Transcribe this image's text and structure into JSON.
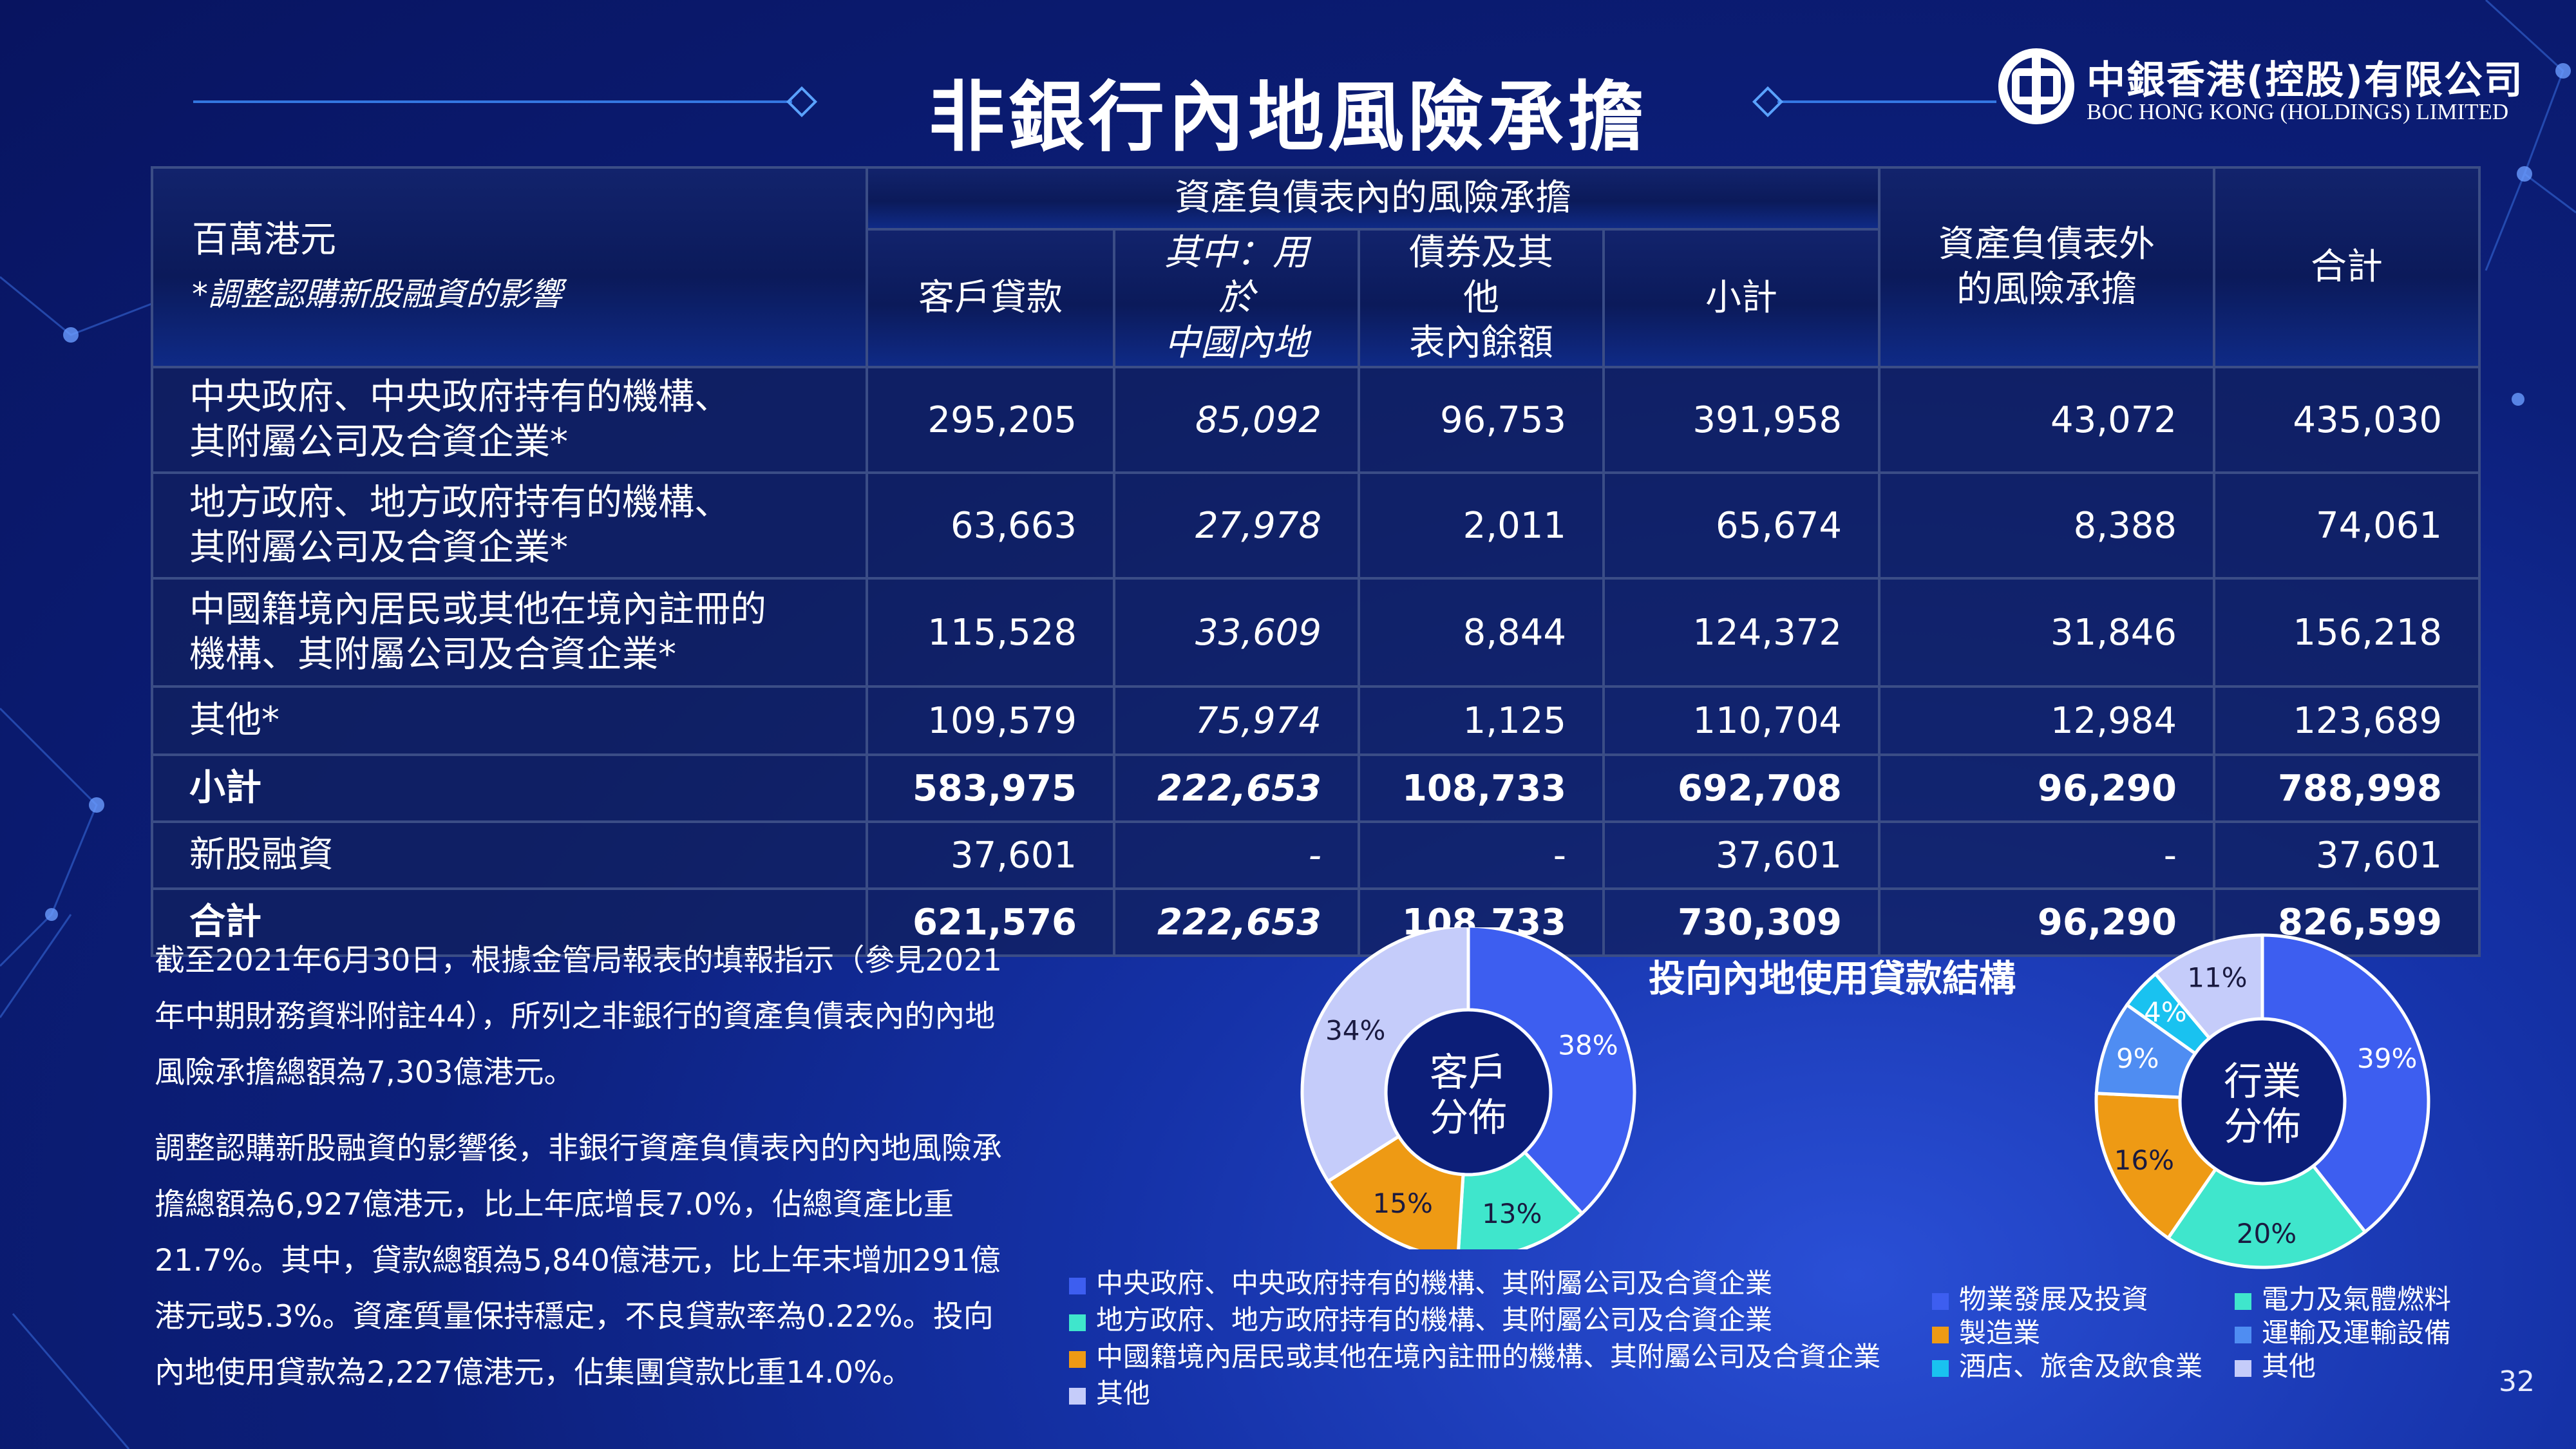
{
  "title": "非銀行內地風險承擔",
  "logo": {
    "name_cn": "中銀香港(控股)有限公司",
    "name_en": "BOC HONG KONG (HOLDINGS) LIMITED"
  },
  "table": {
    "unit": "百萬港元",
    "unit_note": "*調整認購新股融資的影響",
    "group_header": "資產負債表內的風險承擔",
    "columns": [
      "客戶貸款",
      "其中：用於\n中國內地",
      "債券及其他\n表內餘額",
      "小計",
      "資產負債表外\n的風險承擔",
      "合計"
    ],
    "rows": [
      {
        "label": "中央政府、中央政府持有的機構、\n其附屬公司及合資企業*",
        "values": [
          "295,205",
          "85,092",
          "96,753",
          "391,958",
          "43,072",
          "435,030"
        ]
      },
      {
        "label": "地方政府、地方政府持有的機構、\n其附屬公司及合資企業*",
        "values": [
          "63,663",
          "27,978",
          "2,011",
          "65,674",
          "8,388",
          "74,061"
        ]
      },
      {
        "label": "中國籍境內居民或其他在境內註冊的\n機構、其附屬公司及合資企業*",
        "values": [
          "115,528",
          "33,609",
          "8,844",
          "124,372",
          "31,846",
          "156,218"
        ]
      },
      {
        "label": "其他*",
        "values": [
          "109,579",
          "75,974",
          "1,125",
          "110,704",
          "12,984",
          "123,689"
        ]
      },
      {
        "label": "小計",
        "values": [
          "583,975",
          "222,653",
          "108,733",
          "692,708",
          "96,290",
          "788,998"
        ],
        "bold": true
      },
      {
        "label": "新股融資",
        "values": [
          "37,601",
          "-",
          "-",
          "37,601",
          "-",
          "37,601"
        ]
      },
      {
        "label": "合計",
        "values": [
          "621,576",
          "222,653",
          "108,733",
          "730,309",
          "96,290",
          "826,599"
        ],
        "bold": true
      }
    ]
  },
  "paragraph1": "截至2021年6月30日，根據金管局報表的填報指示（參見2021年中期財務資料附註44），所列之非銀行的資產負債表內的內地風險承擔總額為7,303億港元。",
  "paragraph2": "調整認購新股融資的影響後，非銀行資產負債表內的內地風險承擔總額為6,927億港元，比上年底增長7.0%，佔總資產比重21.7%。其中，貸款總額為5,840億港元，比上年末增加291億港元或5.3%。資產質量保持穩定，不良貸款率為0.22%。投向內地使用貸款為2,227億港元，佔集團貸款比重14.0%。",
  "chart_title": "投向內地使用貸款結構",
  "page_number": "32",
  "chart_data": [
    {
      "type": "pie",
      "center_label": "客戶\n分佈",
      "categories": [
        "中央政府、中央政府持有的機構、其附屬公司及合資企業",
        "地方政府、地方政府持有的機構、其附屬公司及合資企業",
        "中國籍境內居民或其他在境內註冊的機構、其附屬公司及合資企業",
        "其他"
      ],
      "values": [
        38,
        13,
        15,
        34
      ],
      "labels": [
        "38%",
        "13%",
        "15%",
        "34%"
      ],
      "colors": [
        "#3d5ef0",
        "#3fe6cc",
        "#ee9a14",
        "#c5ccfa"
      ]
    },
    {
      "type": "pie",
      "center_label": "行業\n分佈",
      "categories": [
        "物業發展及投資",
        "電力及氣體燃料",
        "製造業",
        "運輸及運輸設備",
        "酒店、旅舍及飲食業",
        "其他"
      ],
      "values": [
        39,
        20,
        16,
        9,
        4,
        11
      ],
      "labels": [
        "39%",
        "20%",
        "16%",
        "9%",
        "4%",
        "11%"
      ],
      "colors": [
        "#3d5ef0",
        "#3fe6cc",
        "#ee9a14",
        "#4f8df2",
        "#19c2f0",
        "#c5ccfa"
      ]
    }
  ]
}
